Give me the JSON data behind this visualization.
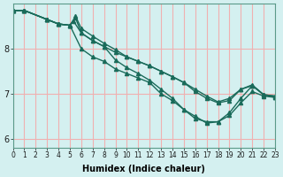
{
  "xlabel": "Humidex (Indice chaleur)",
  "ylabel": "",
  "background_color": "#d4f0f0",
  "grid_color": "#f0b0b0",
  "line_color": "#1a6b5a",
  "xlim": [
    0,
    23
  ],
  "ylim": [
    5.8,
    9.0
  ],
  "yticks": [
    6,
    7,
    8
  ],
  "xticks": [
    0,
    1,
    2,
    3,
    4,
    5,
    6,
    7,
    8,
    9,
    10,
    11,
    12,
    13,
    14,
    15,
    16,
    17,
    18,
    19,
    20,
    21,
    22,
    23
  ],
  "series": [
    {
      "x": [
        0,
        1,
        3,
        4,
        5,
        5.3,
        6,
        7,
        8,
        9,
        10,
        11,
        12,
        13,
        14,
        15,
        16,
        17,
        18,
        19,
        20,
        21,
        22,
        23
      ],
      "y": [
        8.85,
        8.85,
        8.65,
        8.55,
        8.52,
        8.62,
        8.35,
        8.18,
        8.05,
        7.92,
        7.82,
        7.72,
        7.62,
        7.5,
        7.38,
        7.25,
        7.1,
        6.95,
        6.82,
        6.9,
        7.1,
        7.2,
        6.98,
        6.95
      ]
    },
    {
      "x": [
        0,
        1,
        3,
        4,
        5,
        6,
        7,
        8,
        9,
        10,
        11,
        12,
        13,
        14,
        15,
        16,
        17,
        18,
        19,
        20,
        21,
        22,
        23
      ],
      "y": [
        8.85,
        8.85,
        8.65,
        8.55,
        8.52,
        8.0,
        7.82,
        7.72,
        7.55,
        7.45,
        7.35,
        7.25,
        7.0,
        6.85,
        6.65,
        6.45,
        6.38,
        6.38,
        6.52,
        6.8,
        7.05,
        6.95,
        6.92
      ]
    },
    {
      "x": [
        0,
        1,
        3,
        4,
        5,
        5.5,
        6,
        7,
        8,
        9,
        10,
        11,
        12,
        13,
        14,
        15,
        16,
        17,
        18,
        19,
        20,
        21,
        22,
        23
      ],
      "y": [
        8.85,
        8.85,
        8.65,
        8.55,
        8.52,
        8.72,
        8.45,
        8.28,
        8.12,
        7.98,
        7.82,
        7.72,
        7.62,
        7.5,
        7.38,
        7.25,
        7.05,
        6.9,
        6.8,
        6.85,
        7.1,
        7.18,
        6.98,
        6.95
      ]
    },
    {
      "x": [
        0,
        1,
        3,
        4,
        5,
        5.5,
        6,
        7,
        8,
        9,
        10,
        11,
        12,
        13,
        14,
        15,
        16,
        17,
        18,
        19,
        20,
        21,
        22,
        23
      ],
      "y": [
        8.85,
        8.85,
        8.65,
        8.55,
        8.52,
        8.68,
        8.35,
        8.18,
        8.05,
        7.75,
        7.58,
        7.45,
        7.3,
        7.1,
        6.9,
        6.65,
        6.5,
        6.35,
        6.38,
        6.58,
        6.9,
        7.18,
        6.98,
        6.92
      ]
    }
  ],
  "marker": "^",
  "markersize": 3,
  "linewidth": 1.0
}
